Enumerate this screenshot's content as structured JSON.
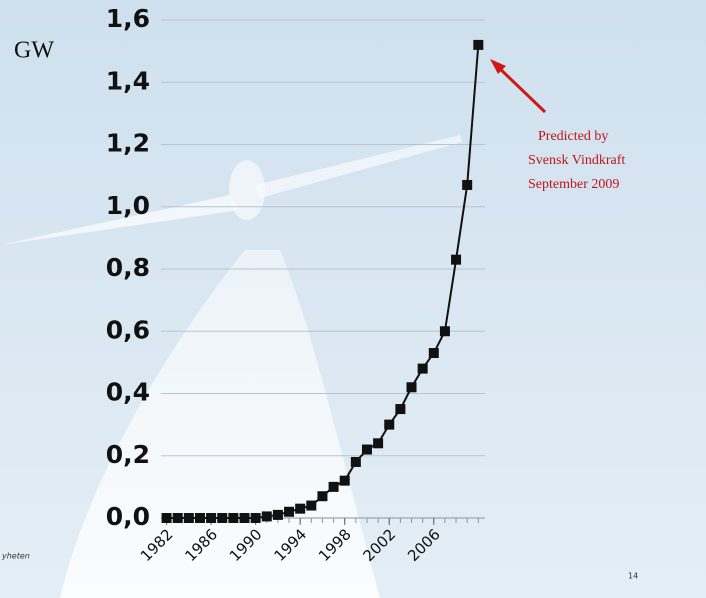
{
  "chart_data": {
    "type": "line",
    "y_label": "GW",
    "annotation": [
      "Predicted by",
      "Svensk Vindkraft",
      "September 2009"
    ],
    "footer_left": "yheten",
    "page_number": "14",
    "x": [
      1982,
      1983,
      1984,
      1985,
      1986,
      1987,
      1988,
      1989,
      1990,
      1991,
      1992,
      1993,
      1994,
      1995,
      1996,
      1997,
      1998,
      1999,
      2000,
      2001,
      2002,
      2003,
      2004,
      2005,
      2006,
      2007,
      2008,
      2009,
      2010
    ],
    "series": [
      {
        "color": "#111111",
        "values": [
          0.0,
          0.0,
          0.0,
          0.0,
          0.0,
          0.0,
          0.0,
          0.0,
          0.0,
          0.005,
          0.01,
          0.02,
          0.03,
          0.04,
          0.07,
          0.1,
          0.12,
          0.18,
          0.22,
          0.24,
          0.3,
          0.35,
          0.42,
          0.48,
          0.53,
          0.6,
          0.83,
          1.07,
          1.52
        ]
      }
    ],
    "xlim": [
      1981.5,
      2010.6
    ],
    "xticks": [
      1982,
      1986,
      1990,
      1994,
      1998,
      2002,
      2006
    ],
    "ylim": [
      0,
      1.6
    ],
    "yticks": [
      {
        "value": 0,
        "label": "0,0"
      },
      {
        "value": 0.2,
        "label": "0,2"
      },
      {
        "value": 0.4,
        "label": "0,4"
      },
      {
        "value": 0.6,
        "label": "0,6"
      },
      {
        "value": 0.8,
        "label": "0,8"
      },
      {
        "value": 1.0,
        "label": "1,0"
      },
      {
        "value": 1.2,
        "label": "1,2"
      },
      {
        "value": 1.4,
        "label": "1,4"
      },
      {
        "value": 1.6,
        "label": "1,6"
      }
    ],
    "grid": true
  }
}
